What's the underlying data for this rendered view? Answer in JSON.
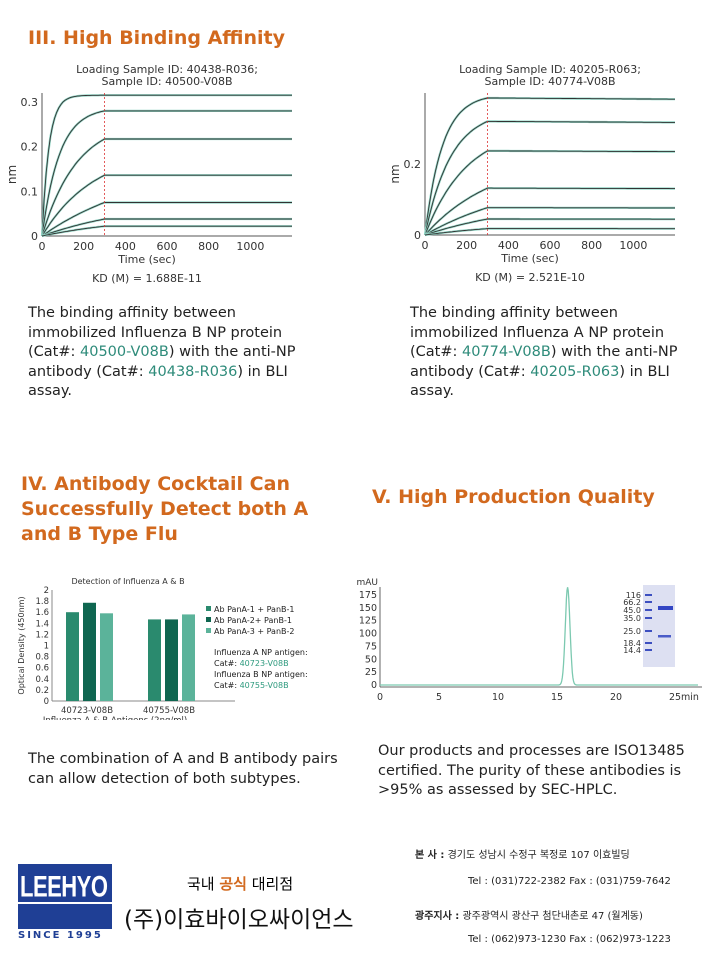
{
  "section3": {
    "title": "III. High Binding Affinity",
    "chart_left_caption": {
      "p1": "The binding affinity between immobilized Influenza B NP protein (Cat#: ",
      "cat1": "40500-V08B",
      "p2": ") with the anti-NP antibody (Cat#: ",
      "cat2": "40438-R036",
      "p3": ") in BLI assay."
    },
    "chart_right_caption": {
      "p1": "The binding affinity between immobilized Influenza A NP protein (Cat#: ",
      "cat1": "40774-V08B",
      "p2": ") with the anti-NP antibody (Cat#: ",
      "cat2": "40205-R063",
      "p3": ") in BLI assay."
    }
  },
  "section4": {
    "title": "IV. Antibody Cocktail Can Successfully Detect both A and B Type Flu",
    "caption": "The combination of A and B antibody pairs can allow detection of both subtypes.",
    "antigen_notes": [
      {
        "label": "Influenza A NP antigen:",
        "cat_prefix": "Cat#: ",
        "cat": "40723-V08B"
      },
      {
        "label": "Influenza B NP antigen:",
        "cat_prefix": "Cat#: ",
        "cat": "40755-V08B"
      }
    ]
  },
  "section5": {
    "title": "V. High Production Quality",
    "caption": "Our products and processes are ISO13485 certified. The purity of these antibodies is >95% as assessed by SEC-HPLC."
  },
  "chart_data": [
    {
      "type": "line",
      "title": "Loading Sample ID: 40438-R036; Sample ID: 40500-V08B",
      "xlabel": "Time (sec)",
      "ylabel": "nm",
      "xlim": [
        0,
        1200
      ],
      "ylim": [
        0,
        0.32
      ],
      "xticks": [
        "0",
        "200",
        "400",
        "600",
        "800",
        "1000"
      ],
      "yticks": [
        "0",
        "0.1",
        "0.2",
        "0.3"
      ],
      "ytick_values": [
        0,
        0.1,
        0.2,
        0.3
      ],
      "association_end_sec": 300,
      "plateaus_nm": [
        0.315,
        0.28,
        0.217,
        0.136,
        0.075,
        0.038,
        0.022
      ],
      "rates": [
        0.03,
        0.012,
        0.006,
        0.004,
        0.002,
        0.002,
        0.002
      ],
      "annotation": "KD (M) = 1.688E-11"
    },
    {
      "type": "line",
      "title": "Loading Sample ID: 40205-R063; Sample ID: 40774-V08B",
      "xlabel": "Time (sec)",
      "ylabel": "nm",
      "xlim": [
        0,
        1200
      ],
      "ylim": [
        0,
        0.4
      ],
      "xticks": [
        "0",
        "200",
        "400",
        "600",
        "800",
        "1000"
      ],
      "yticks": [
        "0",
        "0.2"
      ],
      "ytick_values": [
        0,
        0.2
      ],
      "association_end_sec": 300,
      "plateaus_nm": [
        0.386,
        0.32,
        0.237,
        0.132,
        0.077,
        0.045,
        0.018
      ],
      "rates": [
        0.012,
        0.008,
        0.005,
        0.003,
        0.002,
        0.002,
        0.002
      ],
      "annotation": "KD (M) = 2.521E-10"
    },
    {
      "type": "bar",
      "title": "Detection of Influenza A & B",
      "xlabel": "Influenza A & B Antigens (2ng/ml)",
      "ylabel": "Optical Density (450nm)",
      "ylim": [
        0,
        2
      ],
      "yticks": [
        "0",
        "0.2",
        "0.4",
        "0.6",
        "0.8",
        "1",
        "1.2",
        "1.4",
        "1.6",
        "1.8",
        "2"
      ],
      "categories": [
        "40723-V08B",
        "40755-V08B"
      ],
      "series": [
        {
          "name": "Ab PanA-1 + PanB-1",
          "color": "#2a8a6e",
          "values": [
            1.6,
            1.47
          ]
        },
        {
          "name": "Ab PanA-2+ PanB-1",
          "color": "#0f6650",
          "values": [
            1.77,
            1.47
          ]
        },
        {
          "name": "Ab PanA-3 + PanB-2",
          "color": "#5bb39a",
          "values": [
            1.58,
            1.56
          ]
        }
      ],
      "legend": "right"
    },
    {
      "type": "line",
      "ylabel": "mAU",
      "xlabel": "min",
      "xlim": [
        0,
        27
      ],
      "ylim": [
        -5,
        195
      ],
      "xticks": [
        "0",
        "5",
        "10",
        "15",
        "20",
        "25"
      ],
      "yticks": [
        "0",
        "25",
        "50",
        "75",
        "100",
        "125",
        "150",
        "175"
      ],
      "peak": {
        "x": 15.9,
        "y": 190
      },
      "gel_markers": [
        "116",
        "66.2",
        "45.0",
        "35.0",
        "25.0",
        "18.4",
        "14.4"
      ]
    }
  ],
  "footer": {
    "logo": "LEEHYO",
    "since": "SINCE 1995",
    "tag_pre": "국내 ",
    "tag_hl": "공식",
    "tag_post": " 대리점",
    "company": "(주)이효바이오싸이언스",
    "hq_label": "본     사 :",
    "hq_addr": "경기도 성남시 수정구 복정로 107 이효빌딩",
    "hq_tel": "Tel : (031)722-2382  Fax : (031)759-7642",
    "br_label": "광주지사 :",
    "br_addr": "광주광역시 광산구 첨단내촌로 47 (월계동)",
    "br_tel": "Tel : (062)973-1230  Fax : (062)973-1223"
  }
}
